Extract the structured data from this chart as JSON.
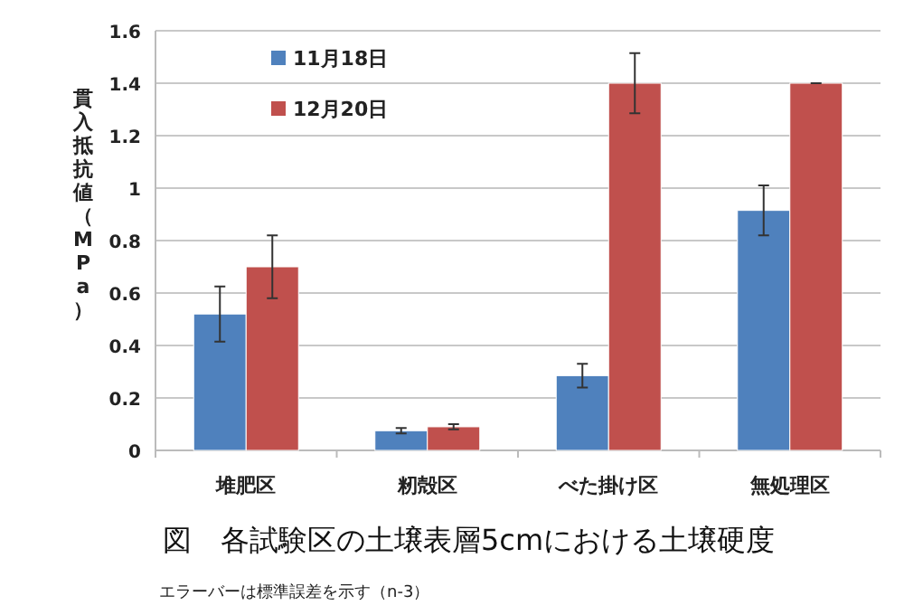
{
  "chart_data": {
    "type": "bar",
    "title": "図　各試験区の土壌表層5cmにおける土壌硬度",
    "ylabel": "貫入抵抗値（MPa）",
    "annotations": [
      "エラーバーは標準誤差を示す（n-3）"
    ],
    "categories": [
      "堆肥区",
      "籾殻区",
      "べた掛け区",
      "無処理区"
    ],
    "series": [
      {
        "name": "11月18日",
        "color": "#4f81bd",
        "values": [
          0.52,
          0.075,
          0.285,
          0.915
        ],
        "errors": [
          0.105,
          0.01,
          0.045,
          0.095
        ]
      },
      {
        "name": "12月20日",
        "color": "#c0504d",
        "values": [
          0.7,
          0.09,
          1.4,
          1.4
        ],
        "errors": [
          0.12,
          0.01,
          0.115,
          0
        ]
      }
    ],
    "ylim": [
      0,
      1.6
    ],
    "yticks": [
      0,
      0.2,
      0.4,
      0.6,
      0.8,
      1,
      1.2,
      1.4,
      1.6
    ],
    "grid": "y",
    "legend": "top left"
  }
}
